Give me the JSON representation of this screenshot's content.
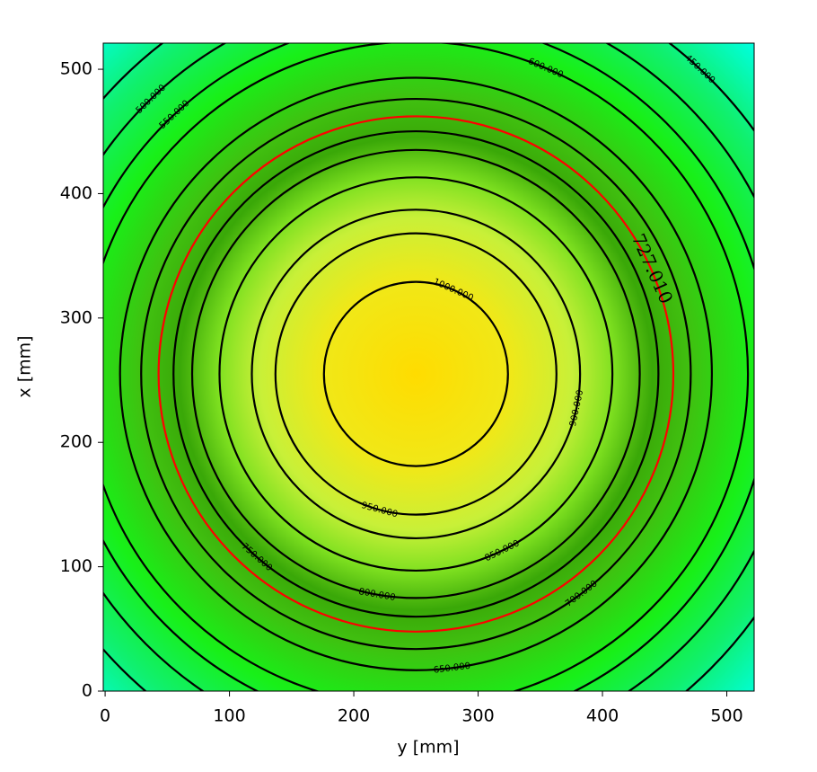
{
  "chart_data": {
    "type": "contour",
    "xlabel": "y [mm]",
    "ylabel": "x [mm]",
    "xlim": [
      -1.5,
      522
    ],
    "ylim": [
      0,
      521
    ],
    "xticks": [
      0,
      100,
      200,
      300,
      400,
      500
    ],
    "yticks": [
      0,
      100,
      200,
      300,
      400,
      500
    ],
    "center": [
      250,
      255
    ],
    "contours": [
      {
        "level": 1000,
        "label": "1000.000",
        "radius": 74,
        "color": "#000000"
      },
      {
        "level": 950,
        "label": "950.000",
        "radius": 113,
        "color": "#000000"
      },
      {
        "level": 900,
        "label": "900.000",
        "radius": 132,
        "color": "#000000"
      },
      {
        "level": 850,
        "label": "850.000",
        "radius": 158,
        "color": "#000000"
      },
      {
        "level": 800,
        "label": "800.000",
        "radius": 180,
        "color": "#000000"
      },
      {
        "level": 750,
        "label": "750.000",
        "radius": 195,
        "color": "#000000"
      },
      {
        "level": 727.01,
        "label": "727.010",
        "radius": 207,
        "color": "#ff0000"
      },
      {
        "level": 700,
        "label": "700.000",
        "radius": 221,
        "color": "#000000"
      },
      {
        "level": 650,
        "label": "650.000",
        "radius": 238,
        "color": "#000000"
      },
      {
        "level": 600,
        "label": "600.000",
        "radius": 267,
        "color": "#000000"
      },
      {
        "level": 550,
        "label": "550.000",
        "radius": 285,
        "color": "#000000"
      },
      {
        "level": 500,
        "label": "500.000",
        "radius": 307,
        "color": "#000000"
      },
      {
        "level": 450,
        "label": "450.000",
        "radius": 335,
        "color": "#000000"
      }
    ]
  }
}
